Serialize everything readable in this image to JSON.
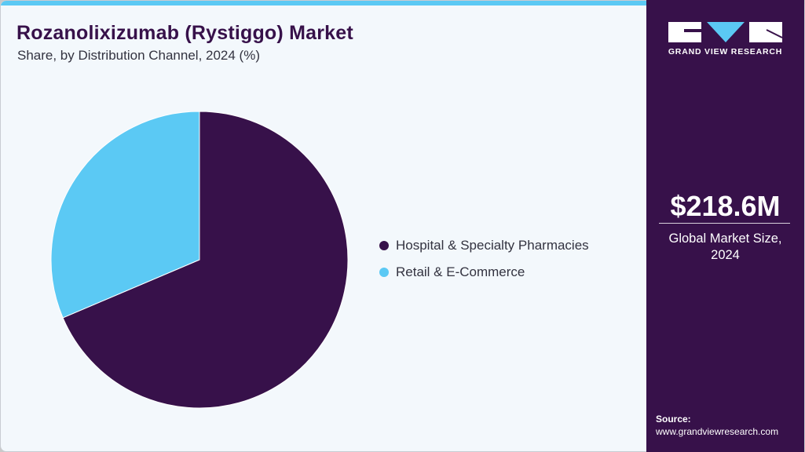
{
  "header": {
    "title": "Rozanolixizumab (Rystiggo) Market",
    "subtitle": "Share, by Distribution Channel, 2024 (%)"
  },
  "colors": {
    "accent_bar": "#5bc9f4",
    "brand_dark": "#37114a",
    "background": "#f3f8fc"
  },
  "chart_data": {
    "type": "pie",
    "title": "Rozanolixizumab (Rystiggo) Market Share, by Distribution Channel, 2024 (%)",
    "categories": [
      "Hospital & Specialty Pharmacies",
      "Retail & E-Commerce"
    ],
    "values": [
      68.6,
      31.4
    ],
    "colors": [
      "#37114a",
      "#5bc9f4"
    ],
    "start_angle_deg": 0,
    "direction": "clockwise",
    "legend_position": "right",
    "data_labels": false
  },
  "legend": {
    "items": [
      {
        "label": "Hospital & Specialty Pharmacies",
        "color": "#37114a"
      },
      {
        "label": "Retail & E-Commerce",
        "color": "#5bc9f4"
      }
    ]
  },
  "sidebar": {
    "logo_text": "GRAND VIEW RESEARCH",
    "market_value": "$218.6M",
    "market_label_line1": "Global Market Size,",
    "market_label_line2": "2024",
    "source_label": "Source:",
    "source_url": "www.grandviewresearch.com"
  }
}
